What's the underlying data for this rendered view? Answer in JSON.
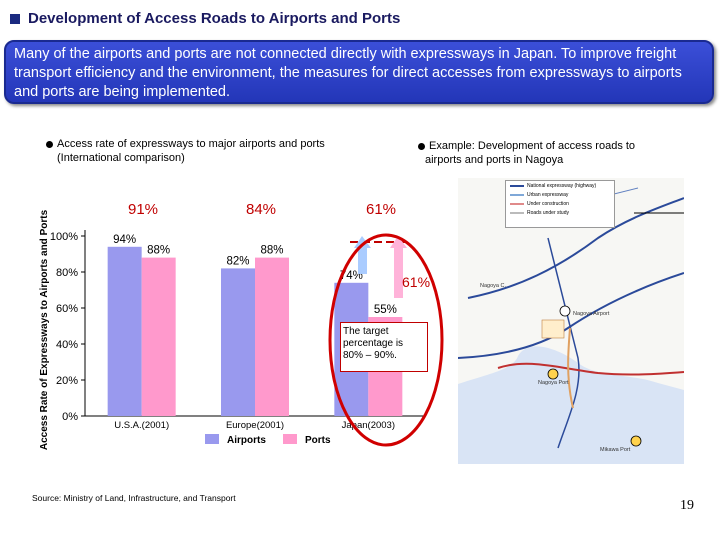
{
  "title": "Development of Access Roads to Airports and Ports",
  "intro": "Many of the airports and ports are not connected directly with expressways in Japan. To improve freight transport efficiency and the environment, the measures for direct accesses from expressways to airports and ports are being implemented.",
  "left_heading_line1": "Access rate of expressways to major airports and ports",
  "left_heading_line2": "(International comparison)",
  "right_heading_line1": "Example: Development of access roads to",
  "right_heading_line2": "airports and ports in Nagoya",
  "combined_labels": [
    "91%",
    "84%",
    "61%"
  ],
  "target_value_label": "61%",
  "target_note": "The target percentage is 80% – 90%.",
  "source": "Source: Ministry of Land, Infrastructure, and Transport",
  "page_number": "19",
  "colors": {
    "airports": "#9999ee",
    "ports": "#ff99cc",
    "accent": "#c00000",
    "header": "#2a3ec8"
  },
  "chart_data": {
    "type": "bar",
    "categories": [
      "U.S.A.(2001)",
      "Europe(2001)",
      "Japan(2003)"
    ],
    "series": [
      {
        "name": "Airports",
        "values": [
          94,
          82,
          74
        ],
        "labels": [
          "94%",
          "82%",
          "74%"
        ]
      },
      {
        "name": "Ports",
        "values": [
          88,
          88,
          55
        ],
        "labels": [
          "88%",
          "88%",
          "55%"
        ]
      }
    ],
    "ylabel": "Access Rate of Expressways to Airports and Ports",
    "ylim": [
      0,
      100
    ],
    "yticks": [
      0,
      20,
      40,
      60,
      80,
      100
    ],
    "ytick_labels": [
      "0%",
      "20%",
      "40%",
      "60%",
      "80%",
      "100%"
    ],
    "legend_position": "bottom",
    "grid": false
  },
  "map": {
    "legend": [
      {
        "label": "National expressway (highway)",
        "color": "#2b4a9a"
      },
      {
        "label": "Urban expressway",
        "color": "#7fa8d8"
      },
      {
        "label": "Under construction",
        "color": "#e08a8a"
      },
      {
        "label": "Roads under study",
        "color": "#bbbbbb"
      }
    ],
    "labels": [
      "Nagoya Airport",
      "Nagoya Port",
      "Mikawa Port",
      "Nagoya C."
    ]
  }
}
